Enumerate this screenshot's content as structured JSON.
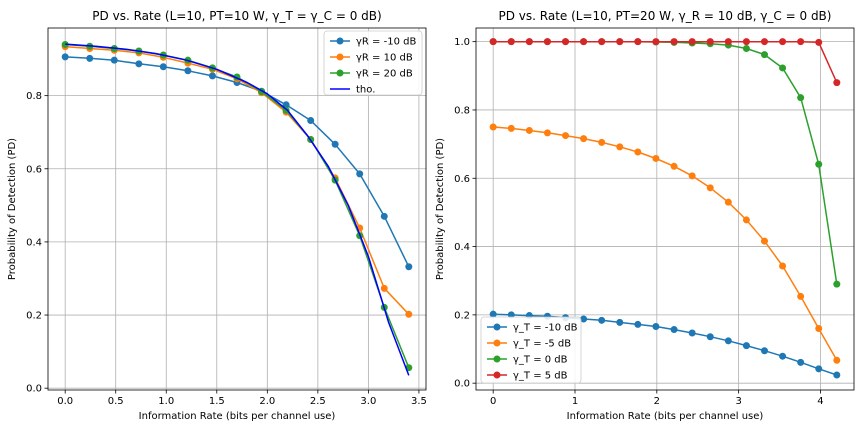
{
  "chart_data": [
    {
      "type": "line",
      "title": "PD vs. Rate (L=10, PT=10 W, γ_T = γ_C = 0 dB)",
      "xlabel": "Information Rate (bits per channel use)",
      "ylabel": "Probability of Detection (PD)",
      "xlim": [
        -0.17,
        3.57
      ],
      "ylim": [
        -0.005,
        0.985
      ],
      "xticks": [
        0.0,
        0.5,
        1.0,
        1.5,
        2.0,
        2.5,
        3.0,
        3.5
      ],
      "xtick_labels": [
        "0.0",
        "0.5",
        "1.0",
        "1.5",
        "2.0",
        "2.5",
        "3.0",
        "3.5"
      ],
      "yticks": [
        0.0,
        0.2,
        0.4,
        0.6,
        0.8
      ],
      "ytick_labels": [
        "0.0",
        "0.2",
        "0.4",
        "0.6",
        "0.8"
      ],
      "grid": true,
      "legend": "top-right",
      "x": [
        0.0,
        0.243,
        0.486,
        0.729,
        0.971,
        1.214,
        1.457,
        1.7,
        1.943,
        2.186,
        2.429,
        2.671,
        2.914,
        3.157,
        3.4
      ],
      "series": [
        {
          "name": "γR = -10 dB",
          "color": "#1f77b4",
          "marker": true,
          "values": [
            0.906,
            0.902,
            0.897,
            0.887,
            0.879,
            0.868,
            0.854,
            0.836,
            0.812,
            0.775,
            0.732,
            0.667,
            0.586,
            0.47,
            0.332
          ]
        },
        {
          "name": "γR = 10 dB",
          "color": "#ff7f0e",
          "marker": true,
          "values": [
            0.934,
            0.929,
            0.924,
            0.917,
            0.905,
            0.889,
            0.872,
            0.846,
            0.808,
            0.755,
            0.68,
            0.575,
            0.438,
            0.273,
            0.202
          ]
        },
        {
          "name": "γR = 20 dB",
          "color": "#2ca02c",
          "marker": true,
          "values": [
            0.94,
            0.935,
            0.929,
            0.922,
            0.911,
            0.897,
            0.876,
            0.851,
            0.811,
            0.76,
            0.68,
            0.569,
            0.417,
            0.221,
            0.056
          ]
        },
        {
          "name": "tho.",
          "color": "#0000ff",
          "marker": false,
          "x": [
            0.0,
            0.3,
            0.6,
            0.9,
            1.2,
            1.5,
            1.8,
            2.0,
            2.2,
            2.4,
            2.6,
            2.8,
            3.0,
            3.2,
            3.4
          ],
          "values": [
            0.941,
            0.935,
            0.927,
            0.915,
            0.897,
            0.872,
            0.836,
            0.805,
            0.76,
            0.69,
            0.608,
            0.5,
            0.36,
            0.18,
            0.035
          ]
        }
      ]
    },
    {
      "type": "line",
      "title": "PD vs. Rate (L=10, PT=20 W, γ_R = 10 dB, γ_C = 0 dB)",
      "xlabel": "Information Rate (bits per channel use)",
      "ylabel": "Probability of Detection (PD)",
      "xlim": [
        -0.21,
        4.41
      ],
      "ylim": [
        -0.02,
        1.04
      ],
      "xticks": [
        0,
        1,
        2,
        3,
        4
      ],
      "xtick_labels": [
        "0",
        "1",
        "2",
        "3",
        "4"
      ],
      "yticks": [
        0.0,
        0.2,
        0.4,
        0.6,
        0.8,
        1.0
      ],
      "ytick_labels": [
        "0.0",
        "0.2",
        "0.4",
        "0.6",
        "0.8",
        "1.0"
      ],
      "grid": true,
      "legend": "bottom-left",
      "x": [
        0.0,
        0.221,
        0.442,
        0.663,
        0.884,
        1.105,
        1.326,
        1.547,
        1.768,
        1.989,
        2.211,
        2.432,
        2.653,
        2.874,
        3.095,
        3.316,
        3.537,
        3.758,
        3.979,
        4.2
      ],
      "series": [
        {
          "name": "γ_T = -10 dB",
          "color": "#1f77b4",
          "marker": true,
          "values": [
            0.202,
            0.2,
            0.198,
            0.196,
            0.192,
            0.188,
            0.184,
            0.178,
            0.172,
            0.166,
            0.157,
            0.147,
            0.136,
            0.124,
            0.11,
            0.095,
            0.079,
            0.061,
            0.042,
            0.024
          ]
        },
        {
          "name": "γ_T = -5 dB",
          "color": "#ff7f0e",
          "marker": true,
          "values": [
            0.75,
            0.746,
            0.74,
            0.733,
            0.725,
            0.716,
            0.705,
            0.692,
            0.677,
            0.658,
            0.635,
            0.607,
            0.572,
            0.53,
            0.478,
            0.416,
            0.343,
            0.254,
            0.16,
            0.067
          ]
        },
        {
          "name": "γ_T = 0 dB",
          "color": "#2ca02c",
          "marker": true,
          "values": [
            1.0,
            1.0,
            1.0,
            1.0,
            1.0,
            1.0,
            1.0,
            1.0,
            1.0,
            0.999,
            0.998,
            0.996,
            0.994,
            0.99,
            0.98,
            0.962,
            0.923,
            0.836,
            0.641,
            0.29
          ]
        },
        {
          "name": "γ_T = 5 dB",
          "color": "#d62728",
          "marker": true,
          "values": [
            1.0,
            1.0,
            1.0,
            1.0,
            1.0,
            1.0,
            1.0,
            1.0,
            1.0,
            1.0,
            1.0,
            1.0,
            1.0,
            1.0,
            1.0,
            1.0,
            1.0,
            1.0,
            0.998,
            0.88
          ]
        }
      ]
    }
  ]
}
